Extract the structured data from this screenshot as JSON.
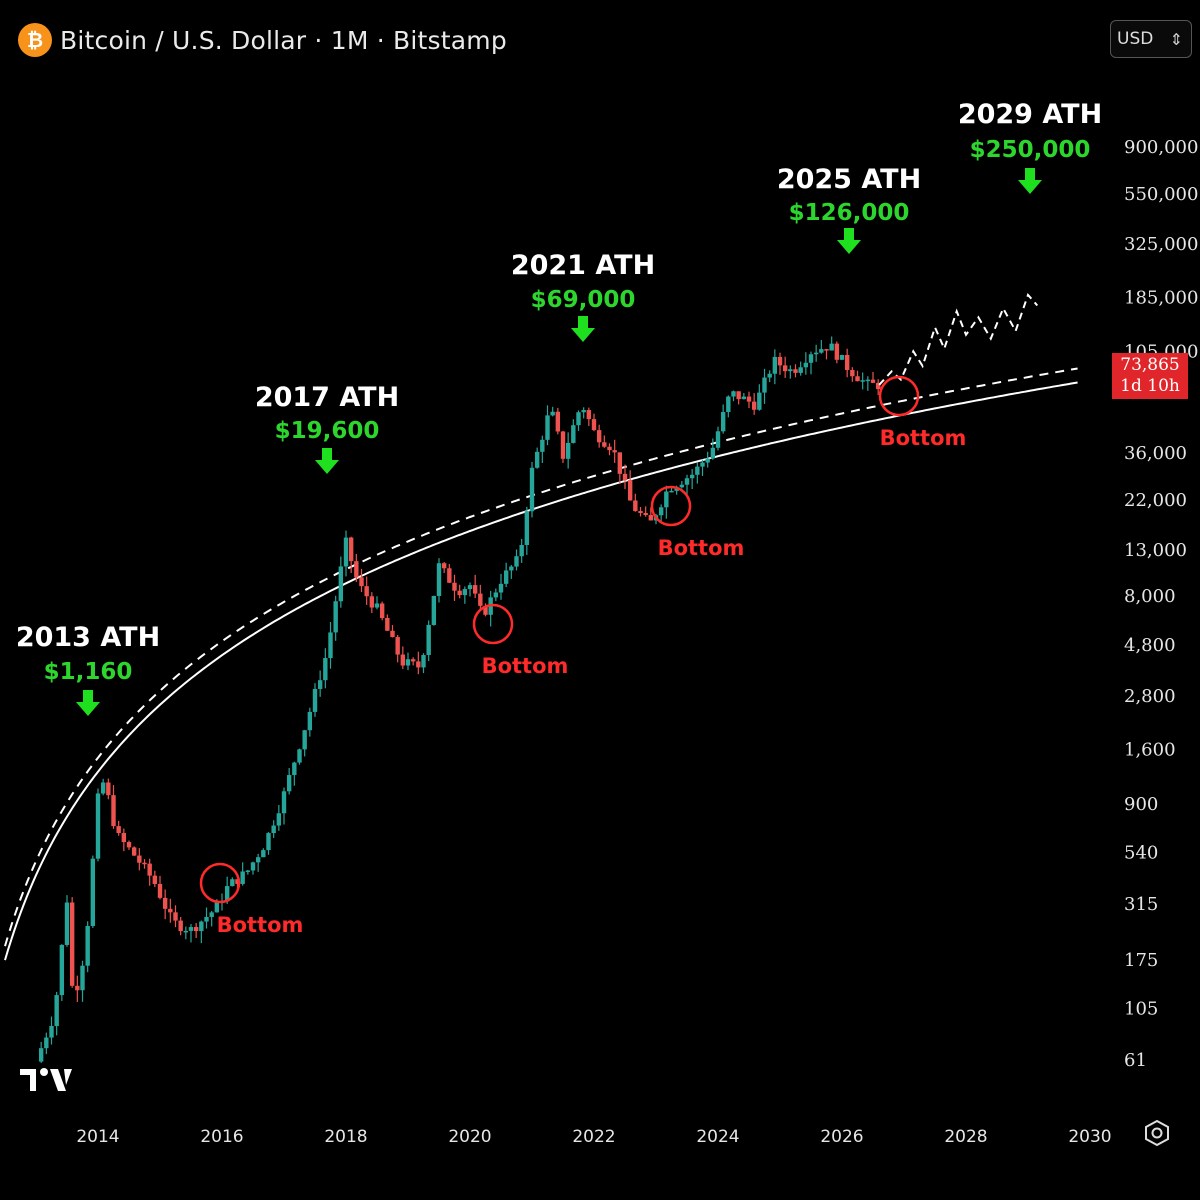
{
  "header": {
    "coin_icon": "bitcoin-icon",
    "coin_symbol": "₿",
    "title": "Bitcoin / U.S. Dollar · 1M · Bitstamp"
  },
  "currency_select": {
    "value": "USD",
    "icon": "chevron-updown-icon"
  },
  "price_badge": {
    "price": "73,865",
    "countdown": "1d 10h"
  },
  "colors": {
    "up": "#26a69a",
    "down": "#ef5350",
    "green_text": "#2dd62d",
    "red_text": "#ff2a2a",
    "badge": "#e0262b"
  },
  "settings_icon": "gear-icon",
  "logo_icon": "tradingview-logo-icon",
  "chart_data": {
    "type": "candlestick",
    "scale": "log",
    "x_range": [
      2013.0,
      2030.2
    ],
    "y_ticks": [
      {
        "label": "900,000",
        "value": 900000
      },
      {
        "label": "550,000",
        "value": 550000
      },
      {
        "label": "325,000",
        "value": 325000
      },
      {
        "label": "185,000",
        "value": 185000
      },
      {
        "label": "105,000",
        "value": 105000
      },
      {
        "label": "36,000",
        "value": 36000
      },
      {
        "label": "22,000",
        "value": 22000
      },
      {
        "label": "13,000",
        "value": 13000
      },
      {
        "label": "8,000",
        "value": 8000
      },
      {
        "label": "4,800",
        "value": 4800
      },
      {
        "label": "2,800",
        "value": 2800
      },
      {
        "label": "1,600",
        "value": 1600
      },
      {
        "label": "900",
        "value": 900
      },
      {
        "label": "540",
        "value": 540
      },
      {
        "label": "315",
        "value": 315
      },
      {
        "label": "175",
        "value": 175
      },
      {
        "label": "105",
        "value": 105
      },
      {
        "label": "61",
        "value": 61
      }
    ],
    "x_ticks": [
      {
        "label": "2014",
        "value": 2014
      },
      {
        "label": "2016",
        "value": 2016
      },
      {
        "label": "2018",
        "value": 2018
      },
      {
        "label": "2020",
        "value": 2020
      },
      {
        "label": "2022",
        "value": 2022
      },
      {
        "label": "2024",
        "value": 2024
      },
      {
        "label": "2026",
        "value": 2026
      },
      {
        "label": "2028",
        "value": 2028
      },
      {
        "label": "2030",
        "value": 2030
      }
    ],
    "price_path": [
      [
        2013.0,
        60
      ],
      [
        2013.3,
        100
      ],
      [
        2013.5,
        330
      ],
      [
        2013.6,
        110
      ],
      [
        2013.8,
        200
      ],
      [
        2014.0,
        950
      ],
      [
        2014.1,
        1160
      ],
      [
        2014.3,
        650
      ],
      [
        2014.6,
        520
      ],
      [
        2014.9,
        400
      ],
      [
        2015.2,
        260
      ],
      [
        2015.5,
        240
      ],
      [
        2015.9,
        300
      ],
      [
        2016.1,
        380
      ],
      [
        2016.4,
        440
      ],
      [
        2016.7,
        600
      ],
      [
        2017.0,
        1000
      ],
      [
        2017.4,
        2300
      ],
      [
        2017.7,
        4500
      ],
      [
        2017.9,
        10000
      ],
      [
        2018.0,
        14000
      ],
      [
        2018.2,
        9000
      ],
      [
        2018.5,
        7000
      ],
      [
        2018.9,
        4000
      ],
      [
        2019.2,
        3800
      ],
      [
        2019.5,
        11000
      ],
      [
        2019.8,
        8500
      ],
      [
        2020.0,
        9000
      ],
      [
        2020.2,
        6500
      ],
      [
        2020.5,
        9500
      ],
      [
        2020.8,
        12000
      ],
      [
        2021.0,
        30000
      ],
      [
        2021.3,
        58000
      ],
      [
        2021.5,
        35000
      ],
      [
        2021.8,
        61000
      ],
      [
        2022.0,
        45000
      ],
      [
        2022.3,
        38000
      ],
      [
        2022.6,
        21000
      ],
      [
        2022.9,
        17000
      ],
      [
        2023.2,
        25000
      ],
      [
        2023.6,
        29000
      ],
      [
        2023.9,
        37000
      ],
      [
        2024.2,
        68000
      ],
      [
        2024.6,
        60000
      ],
      [
        2024.9,
        95000
      ],
      [
        2025.2,
        85000
      ],
      [
        2025.5,
        105000
      ],
      [
        2025.8,
        112000
      ],
      [
        2026.1,
        88000
      ],
      [
        2026.4,
        74000
      ],
      [
        2026.6,
        73865
      ]
    ],
    "projection": [
      [
        2026.6,
        73865
      ],
      [
        2026.8,
        85000
      ],
      [
        2026.95,
        78000
      ],
      [
        2027.15,
        105000
      ],
      [
        2027.3,
        90000
      ],
      [
        2027.5,
        135000
      ],
      [
        2027.65,
        108000
      ],
      [
        2027.85,
        160000
      ],
      [
        2028.0,
        125000
      ],
      [
        2028.2,
        150000
      ],
      [
        2028.4,
        120000
      ],
      [
        2028.6,
        165000
      ],
      [
        2028.8,
        130000
      ],
      [
        2029.0,
        190000
      ],
      [
        2029.15,
        170000
      ]
    ],
    "annotations": [
      {
        "title": "2013 ATH",
        "price": "$1,160",
        "x": 2013.9,
        "value": 1160
      },
      {
        "title": "2017 ATH",
        "price": "$19,600",
        "x": 2017.9,
        "value": 19600
      },
      {
        "title": "2021 ATH",
        "price": "$69,000",
        "x": 2021.85,
        "value": 69000
      },
      {
        "title": "2025 ATH",
        "price": "$126,000",
        "x": 2025.8,
        "value": 126000
      },
      {
        "title": "2029 ATH",
        "price": "$250,000",
        "x": 2029.05,
        "value": 250000
      }
    ],
    "bottoms": [
      {
        "label": "Bottom",
        "x": 2015.9,
        "value": 280
      },
      {
        "label": "Bottom",
        "x": 2020.3,
        "value": 5500
      },
      {
        "label": "Bottom",
        "x": 2023.1,
        "value": 19500
      },
      {
        "label": "Bottom",
        "x": 2026.9,
        "value": 62000
      }
    ]
  }
}
